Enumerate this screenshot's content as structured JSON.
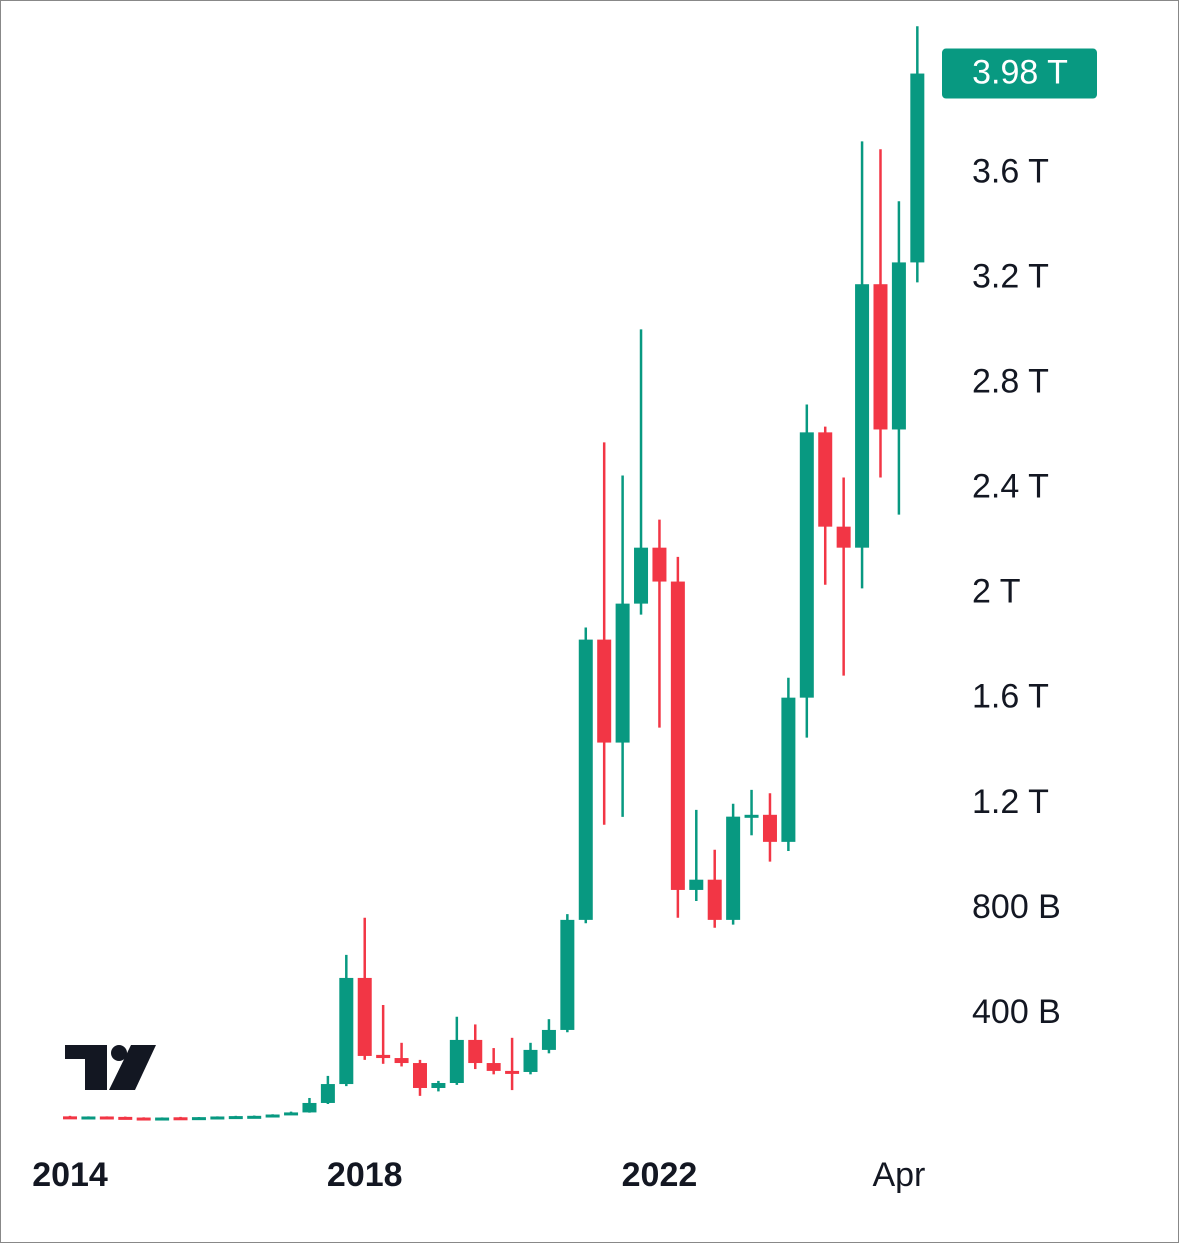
{
  "chart_data": {
    "type": "candlestick",
    "categories": [
      "2014",
      null,
      null,
      null,
      null,
      null,
      null,
      null,
      null,
      null,
      null,
      null,
      null,
      null,
      null,
      null,
      "2018",
      null,
      null,
      null,
      null,
      null,
      null,
      null,
      null,
      null,
      null,
      null,
      null,
      null,
      null,
      null,
      "2022",
      null,
      null,
      null,
      null,
      null,
      null,
      null,
      null,
      null,
      null,
      null,
      null,
      "Apr",
      null
    ],
    "open": [
      10,
      9,
      9.5,
      8,
      5.5,
      4.8,
      6.5,
      6,
      7,
      9.5,
      11,
      12,
      17,
      25,
      61,
      133,
      537,
      244,
      232,
      213,
      118,
      137,
      301,
      213,
      183,
      179,
      263,
      339,
      758,
      1825,
      1433,
      1962,
      2175,
      2046,
      872,
      911,
      758,
      1151,
      1158,
      1055,
      1604,
      2614,
      2255,
      2175,
      3178,
      2625,
      3261
    ],
    "high": [
      12,
      10,
      10,
      9,
      6.5,
      6,
      8,
      7.5,
      10,
      12,
      13,
      18,
      28,
      80,
      164,
      625,
      766,
      434,
      290,
      225,
      145,
      389,
      360,
      270,
      309,
      290,
      380,
      780,
      1871,
      2576,
      2450,
      3006,
      2282,
      2140,
      1177,
      1025,
      1200,
      1253,
      1240,
      1680,
      2720,
      2636,
      2442,
      3722,
      3692,
      3494,
      4160
    ],
    "low": [
      8,
      8,
      7,
      5,
      4.5,
      4,
      5,
      5.5,
      6.5,
      8,
      9,
      11,
      16,
      24,
      57,
      125,
      225,
      210,
      200,
      88,
      105,
      130,
      190,
      170,
      110,
      170,
      250,
      330,
      745,
      1120,
      1150,
      1920,
      1490,
      766,
      830,
      728,
      740,
      1080,
      980,
      1020,
      1452,
      2034,
      1688,
      2020,
      2442,
      2301,
      3185
    ],
    "close": [
      9,
      9.5,
      8,
      5.5,
      4.8,
      5.5,
      6,
      7,
      9.5,
      11,
      12,
      17,
      25,
      61,
      133,
      537,
      240,
      232,
      213,
      118,
      137,
      301,
      213,
      183,
      179,
      263,
      339,
      758,
      1825,
      1433,
      1962,
      2175,
      2046,
      872,
      911,
      758,
      1151,
      1158,
      1055,
      1604,
      2614,
      2255,
      2175,
      3178,
      2625,
      3261,
      3980
    ],
    "up_color": "#089981",
    "down_color": "#f23645",
    "ylim": [
      -80,
      4260
    ],
    "yticks": [
      {
        "value": 400,
        "label": "400 B"
      },
      {
        "value": 800,
        "label": "800 B"
      },
      {
        "value": 1200,
        "label": "1.2 T"
      },
      {
        "value": 1600,
        "label": "1.6 T"
      },
      {
        "value": 2000,
        "label": "2 T"
      },
      {
        "value": 2400,
        "label": "2.4 T"
      },
      {
        "value": 2800,
        "label": "2.8 T"
      },
      {
        "value": 3200,
        "label": "3.2 T"
      },
      {
        "value": 3600,
        "label": "3.6 T"
      }
    ],
    "last_price": {
      "value": 3980,
      "label": "3.98 T"
    },
    "grid": false
  }
}
